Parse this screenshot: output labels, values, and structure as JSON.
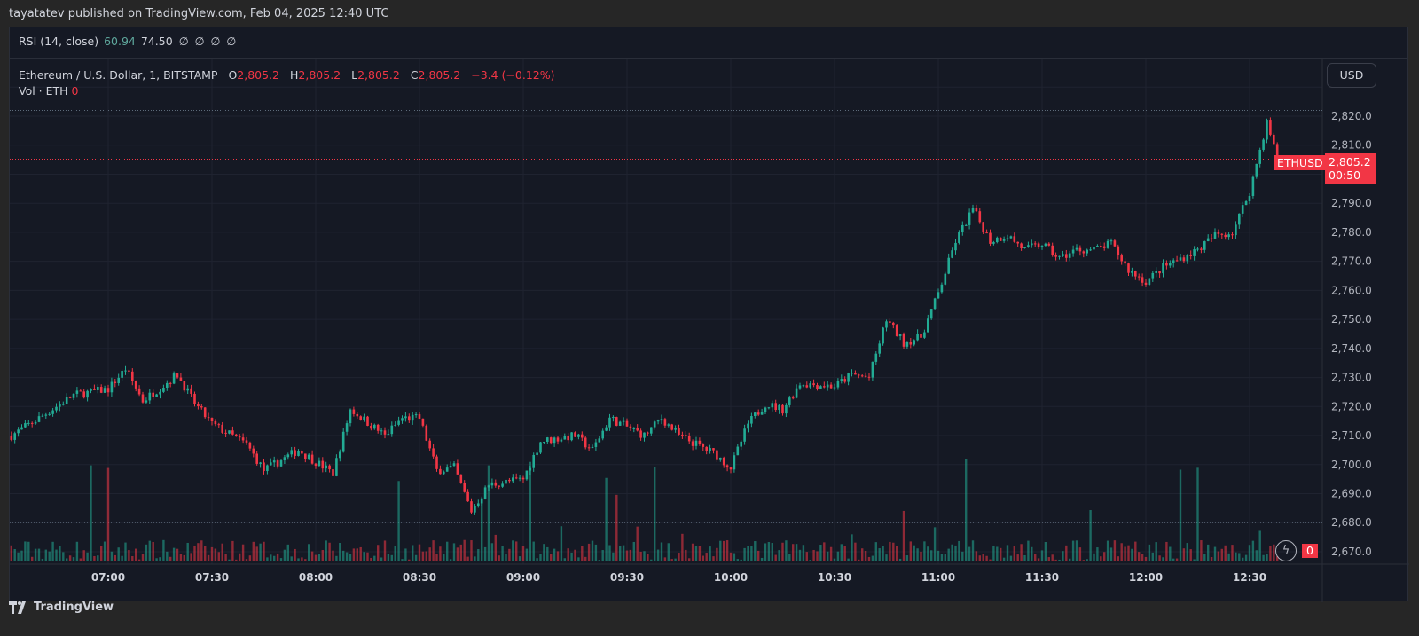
{
  "header": {
    "published": "tayatatev published on TradingView.com, Feb 04, 2025 12:40 UTC"
  },
  "rsi": {
    "label": "RSI (14, close)",
    "value1": "60.94",
    "value2": "74.50",
    "placeholders": [
      "∅",
      "∅",
      "∅",
      "∅"
    ]
  },
  "legend": {
    "symbol": "Ethereum / U.S. Dollar, 1, BITSTAMP",
    "o_label": "O",
    "o": "2,805.2",
    "h_label": "H",
    "h": "2,805.2",
    "l_label": "L",
    "l": "2,805.2",
    "c_label": "C",
    "c": "2,805.2",
    "change": "−3.4 (−0.12%)",
    "vol_label": "Vol · ETH",
    "vol": "0"
  },
  "currency_button": "USD",
  "price_tag": {
    "symbol": "ETHUSD",
    "price": "2,805.2",
    "countdown": "00:50"
  },
  "volume_tag": "0",
  "footer": {
    "brand": "TradingView"
  },
  "colors": {
    "up": "#22ab94",
    "down": "#f23645",
    "background": "#151924"
  },
  "chart_data": {
    "type": "candlestick",
    "interval": "1 minute",
    "y_ticks": [
      2820,
      2810,
      2790,
      2780,
      2770,
      2760,
      2750,
      2740,
      2730,
      2720,
      2710,
      2700,
      2690,
      2680,
      2670
    ],
    "y_tick_labels": [
      "2,820.0",
      "2,810.0",
      "2,790.0",
      "2,780.0",
      "2,770.0",
      "2,760.0",
      "2,750.0",
      "2,740.0",
      "2,730.0",
      "2,720.0",
      "2,710.0",
      "2,700.0",
      "2,690.0",
      "2,680.0",
      "2,670.0"
    ],
    "x_tick_labels": [
      "07:00",
      "07:30",
      "08:00",
      "08:30",
      "09:00",
      "09:30",
      "10:00",
      "10:30",
      "11:00",
      "11:30",
      "12:00",
      "12:30"
    ],
    "ylim": [
      2667,
      2835
    ],
    "last_price": 2805.2,
    "session_high": 2822,
    "session_low": 2680,
    "approx_close_path": [
      [
        "06:32",
        2710
      ],
      [
        "06:40",
        2716
      ],
      [
        "06:50",
        2724
      ],
      [
        "07:00",
        2726
      ],
      [
        "07:05",
        2733
      ],
      [
        "07:10",
        2722
      ],
      [
        "07:20",
        2731
      ],
      [
        "07:25",
        2721
      ],
      [
        "07:30",
        2714
      ],
      [
        "07:40",
        2707
      ],
      [
        "07:45",
        2698
      ],
      [
        "07:55",
        2705
      ],
      [
        "08:00",
        2701
      ],
      [
        "08:05",
        2697
      ],
      [
        "08:10",
        2719
      ],
      [
        "08:20",
        2710
      ],
      [
        "08:25",
        2716
      ],
      [
        "08:30",
        2716
      ],
      [
        "08:35",
        2698
      ],
      [
        "08:40",
        2699
      ],
      [
        "08:45",
        2684
      ],
      [
        "08:50",
        2693
      ],
      [
        "09:00",
        2695
      ],
      [
        "09:05",
        2708
      ],
      [
        "09:15",
        2710
      ],
      [
        "09:20",
        2705
      ],
      [
        "09:25",
        2716
      ],
      [
        "09:35",
        2710
      ],
      [
        "09:40",
        2716
      ],
      [
        "09:45",
        2710
      ],
      [
        "09:55",
        2704
      ],
      [
        "10:00",
        2699
      ],
      [
        "10:05",
        2714
      ],
      [
        "10:10",
        2721
      ],
      [
        "10:15",
        2719
      ],
      [
        "10:20",
        2728
      ],
      [
        "10:30",
        2727
      ],
      [
        "10:35",
        2731
      ],
      [
        "10:40",
        2730
      ],
      [
        "10:45",
        2750
      ],
      [
        "10:50",
        2742
      ],
      [
        "10:55",
        2744
      ],
      [
        "11:00",
        2759
      ],
      [
        "11:05",
        2777
      ],
      [
        "11:10",
        2788
      ],
      [
        "11:15",
        2777
      ],
      [
        "11:20",
        2779
      ],
      [
        "11:25",
        2774
      ],
      [
        "11:30",
        2776
      ],
      [
        "11:35",
        2771
      ],
      [
        "11:40",
        2774
      ],
      [
        "11:45",
        2774
      ],
      [
        "11:50",
        2776
      ],
      [
        "11:55",
        2767
      ],
      [
        "12:00",
        2763
      ],
      [
        "12:05",
        2768
      ],
      [
        "12:10",
        2771
      ],
      [
        "12:15",
        2774
      ],
      [
        "12:20",
        2779
      ],
      [
        "12:25",
        2780
      ],
      [
        "12:30",
        2794
      ],
      [
        "12:35",
        2818
      ],
      [
        "12:38",
        2805.2
      ]
    ]
  }
}
